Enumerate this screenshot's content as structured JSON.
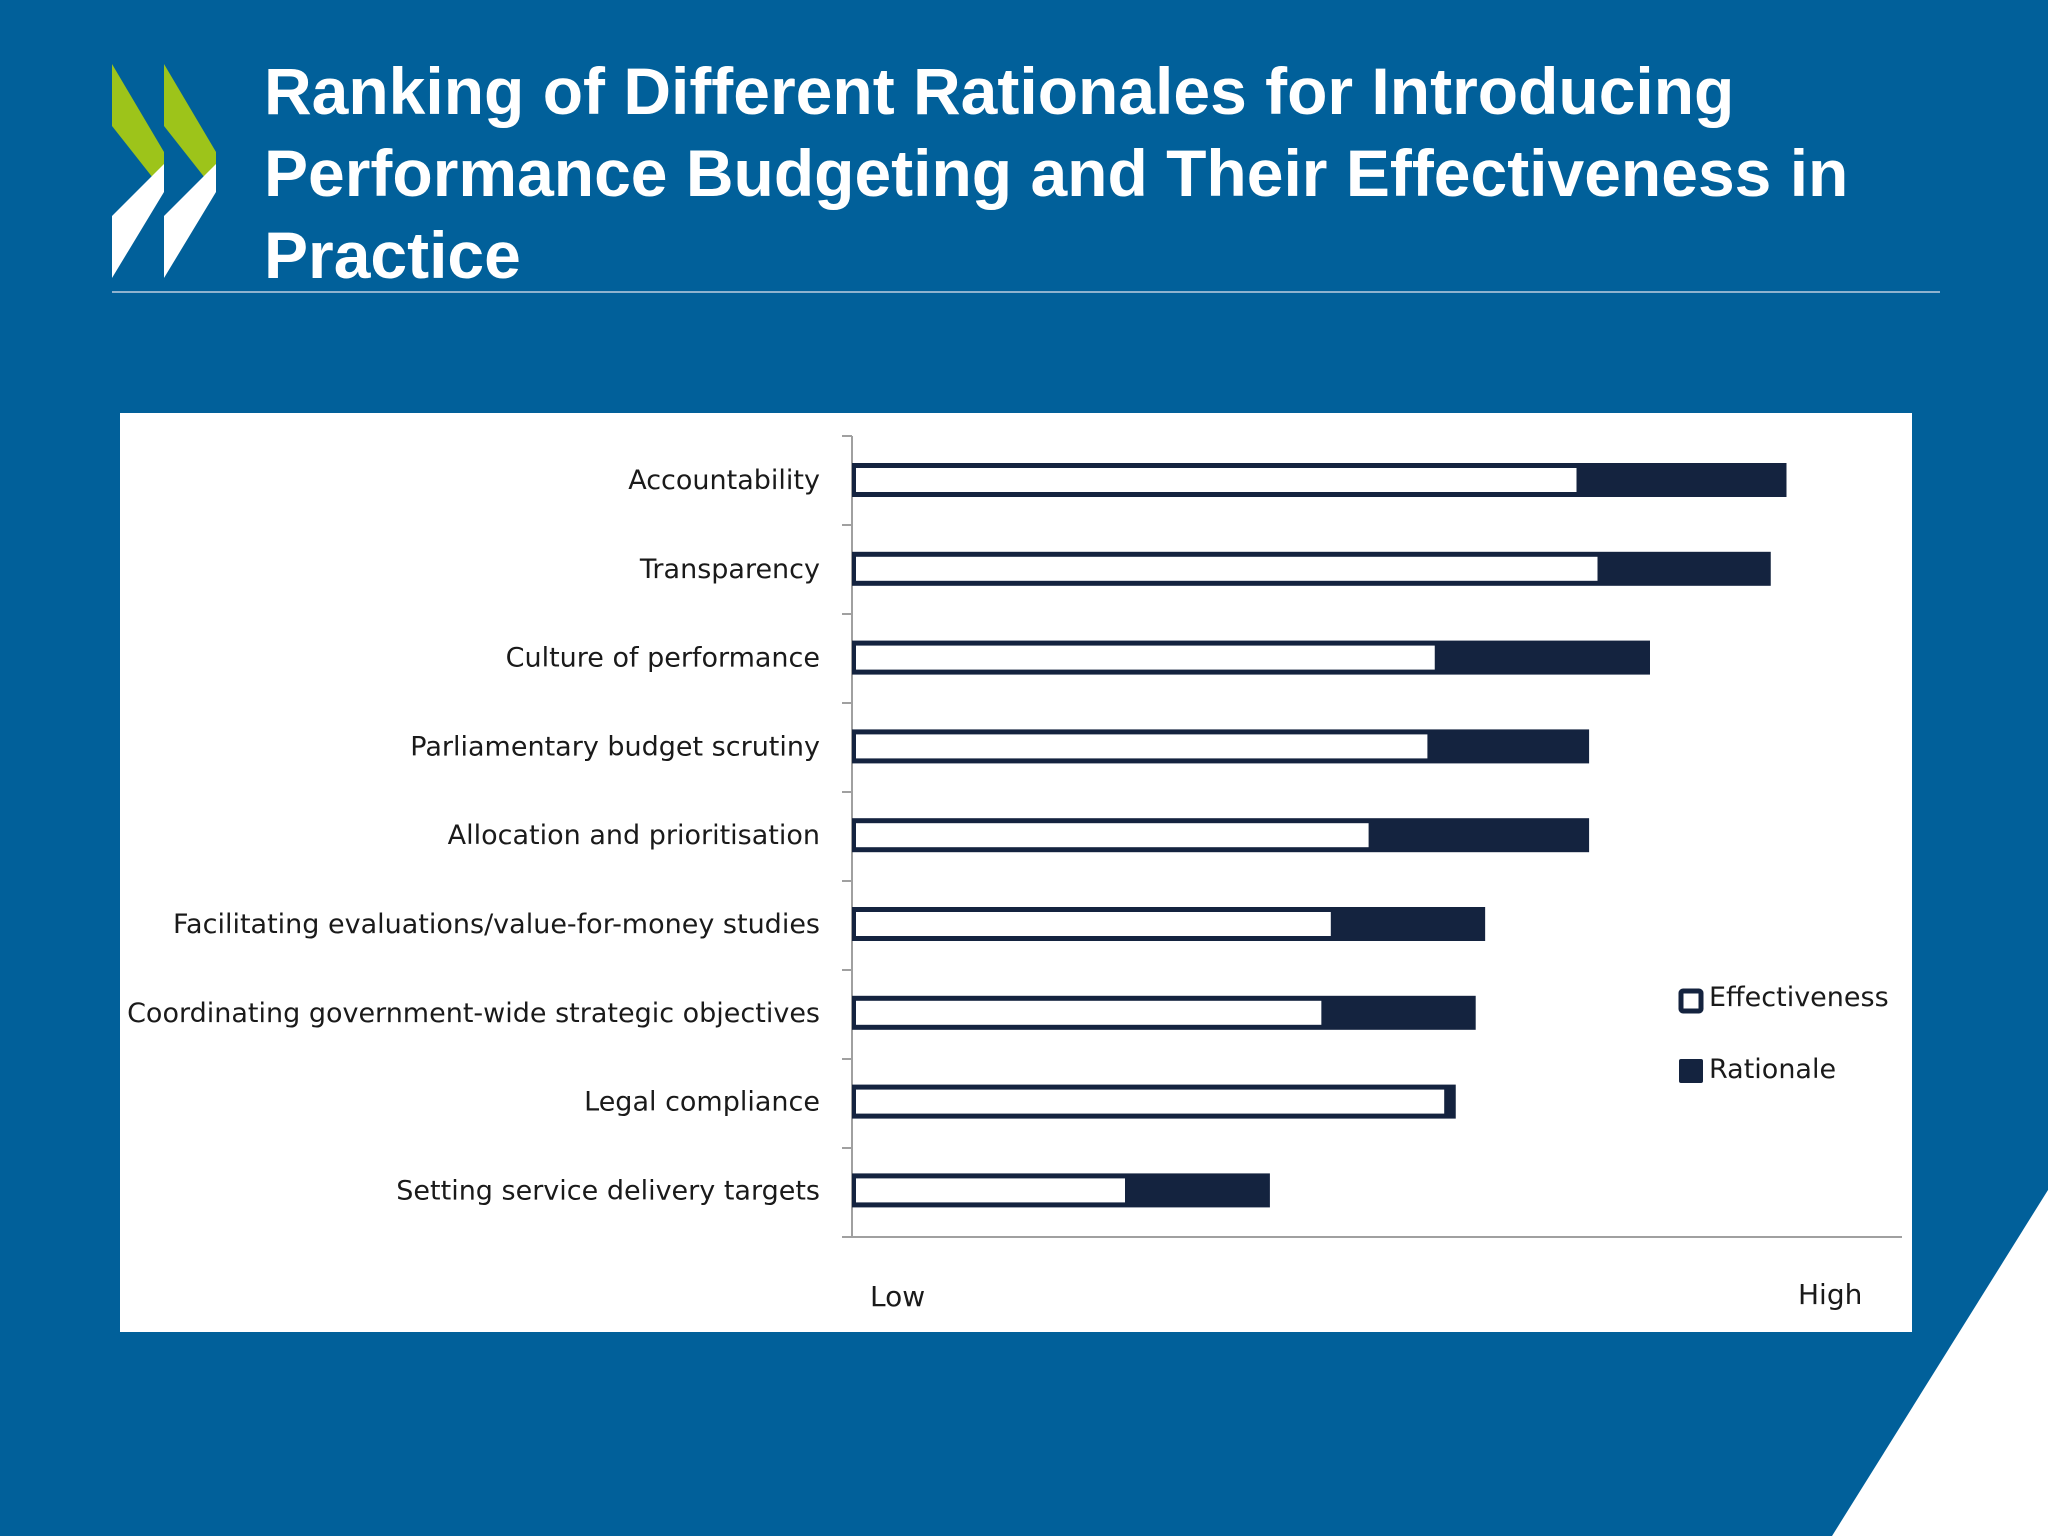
{
  "slide": {
    "title": "Ranking of Different Rationales for Introducing Performance Budgeting and Their Effectiveness in Practice"
  },
  "colors": {
    "background": "#01609a",
    "rationale": "#14233f",
    "effectiveness": "#ffffff",
    "logo_green": "#9dc41a",
    "logo_white": "#ffffff"
  },
  "chart_data": {
    "type": "bar",
    "orientation": "horizontal",
    "categories": [
      "Accountability",
      "Transparency",
      "Culture of performance",
      "Parliamentary budget scrutiny",
      "Allocation and prioritisation",
      "Facilitating evaluations/value-for-money studies",
      "Coordinating government-wide strategic objectives",
      "Legal compliance",
      "Setting service delivery targets"
    ],
    "series": [
      {
        "name": "Effectiveness",
        "values": [
          0.69,
          0.71,
          0.555,
          0.548,
          0.492,
          0.456,
          0.447,
          0.564,
          0.26
        ]
      },
      {
        "name": "Rationale",
        "values": [
          0.89,
          0.875,
          0.76,
          0.702,
          0.702,
          0.603,
          0.594,
          0.575,
          0.398
        ]
      }
    ],
    "xlim": [
      0,
      1
    ],
    "x_axis_labels": {
      "low": "Low",
      "high": "High"
    },
    "legend_position": "right",
    "grid": false
  }
}
